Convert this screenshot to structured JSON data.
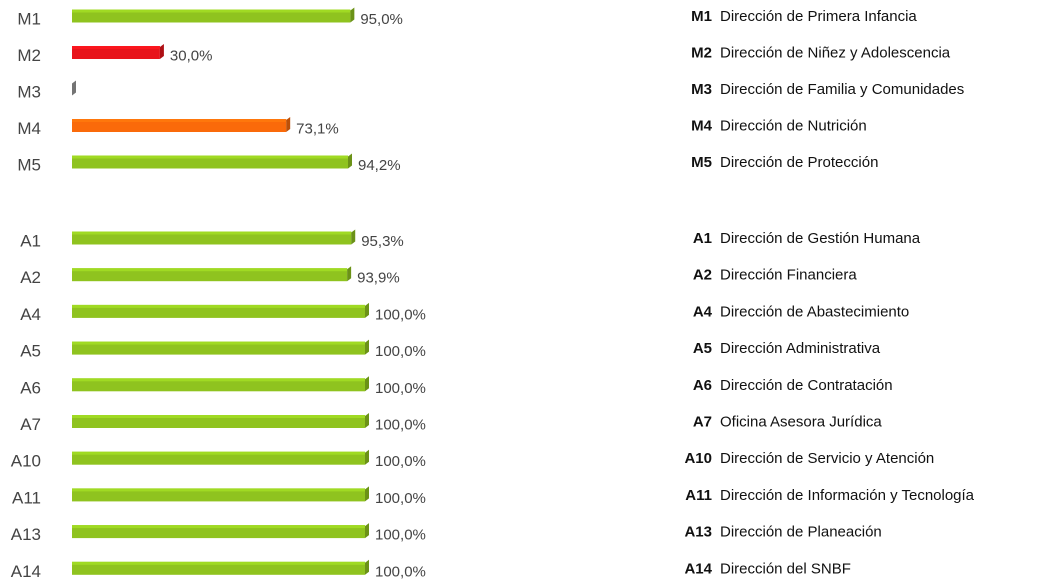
{
  "chart_data": [
    {
      "type": "bar",
      "categories": [
        "M1",
        "M2",
        "M3",
        "M4",
        "M5"
      ],
      "values": [
        95.0,
        30.0,
        0,
        73.1,
        94.2
      ],
      "value_labels": [
        "95,0%",
        "30,0%",
        null,
        "73,1%",
        "94,2%"
      ],
      "colors": [
        "#8fc31f",
        "#e8141b",
        "#9a9a9a",
        "#fa6a0a",
        "#8fc31f"
      ],
      "descriptions": [
        "Dirección de Primera Infancia",
        "Dirección de Niñez y Adolescencia",
        "Dirección de Familia y Comunidades",
        "Dirección de Nutrición",
        "Dirección de Protección"
      ]
    },
    {
      "type": "bar",
      "categories": [
        "A1",
        "A2",
        "A4",
        "A5",
        "A6",
        "A7",
        "A10",
        "A11",
        "A13",
        "A14"
      ],
      "values": [
        95.3,
        93.9,
        100.0,
        100.0,
        100.0,
        100.0,
        100.0,
        100.0,
        100.0,
        100.0
      ],
      "value_labels": [
        "95,3%",
        "93,9%",
        "100,0%",
        "100,0%",
        "100,0%",
        "100,0%",
        "100,0%",
        "100,0%",
        "100,0%",
        "100,0%"
      ],
      "colors": [
        "#8fc31f",
        "#8fc31f",
        "#8fc31f",
        "#8fc31f",
        "#8fc31f",
        "#8fc31f",
        "#8fc31f",
        "#8fc31f",
        "#8fc31f",
        "#8fc31f"
      ],
      "descriptions": [
        "Dirección de Gestión Humana",
        "Dirección Financiera",
        "Dirección de Abastecimiento",
        "Dirección Administrativa",
        "Dirección de Contratación",
        "Oficina Asesora Jurídica",
        "Dirección de Servicio y Atención",
        "Dirección de Información y Tecnología",
        "Dirección de Planeación",
        "Dirección del SNBF"
      ]
    }
  ]
}
